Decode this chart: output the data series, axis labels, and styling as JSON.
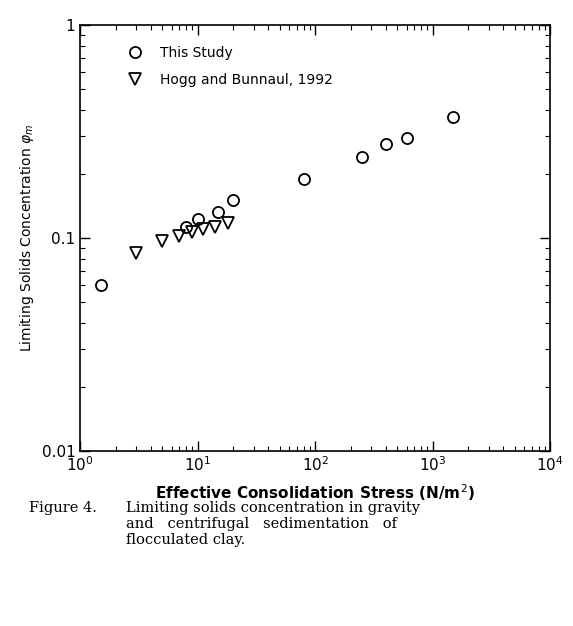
{
  "this_study_x": [
    1.5,
    8,
    10,
    15,
    20,
    80,
    250,
    400,
    600,
    1500
  ],
  "this_study_y": [
    0.06,
    0.112,
    0.122,
    0.132,
    0.15,
    0.19,
    0.24,
    0.275,
    0.295,
    0.37
  ],
  "hogg_x": [
    3.0,
    5.0,
    7.0,
    9.0,
    11.0,
    14.0,
    18.0
  ],
  "hogg_y": [
    0.085,
    0.097,
    0.102,
    0.106,
    0.11,
    0.113,
    0.118
  ],
  "xlabel": "Effective Consolidation Stress (N/m$^2$)",
  "ylabel": "Limiting Solids Concentration $\\varphi_m$",
  "xlim": [
    1,
    10000
  ],
  "ylim": [
    0.01,
    1
  ],
  "xtick_labels": [
    "10$^0$",
    "10$^1$",
    "10$^2$",
    "10$^3$",
    "10$^4$"
  ],
  "xtick_vals": [
    1,
    10,
    100,
    1000,
    10000
  ],
  "ytick_labels": [
    "0.01",
    "0.1",
    "1"
  ],
  "ytick_vals": [
    0.01,
    0.1,
    1
  ],
  "legend_labels": [
    "This Study",
    "Hogg and Bunnaul, 1992"
  ],
  "caption_left": "Figure 4.",
  "caption_right": "Limiting solids concentration in gravity\nand   centrifugal   sedimentation   of\nflocculated clay."
}
